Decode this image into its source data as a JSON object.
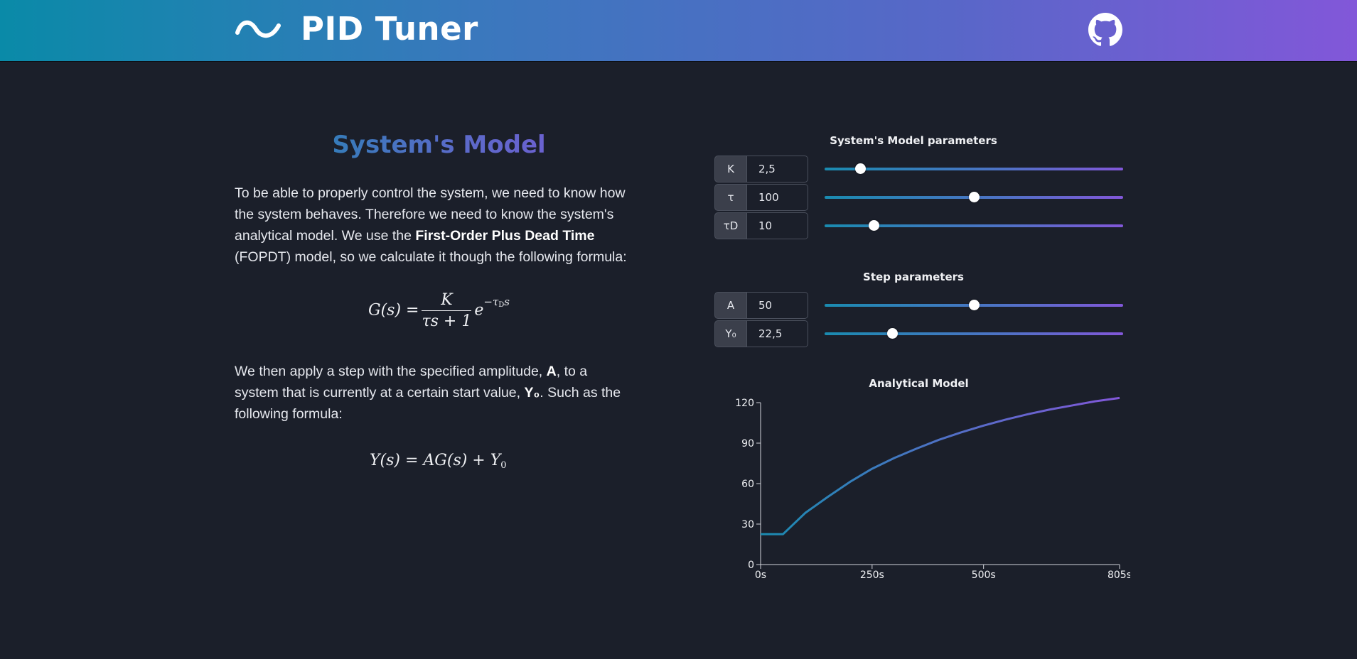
{
  "header": {
    "title": "PID Tuner",
    "logo_icon": "sine-wave-icon",
    "github_icon": "github-icon",
    "gradient": [
      "#0a8aa8",
      "#8257d9"
    ]
  },
  "model_section": {
    "title": "System's Model",
    "para1": {
      "before_bold": "To be able to properly control the system, we need to know how the system behaves. Therefore we need to know the system's analytical model. We use the ",
      "bold": "First-Order Plus Dead Time",
      "after_bold": " (FOPDT) model, so we calculate it though the following formula:"
    },
    "para2": {
      "part1": "We then apply a step with the specified amplitude, ",
      "bold_a": "A",
      "part2": ", to a system that is currently at a certain start value, ",
      "bold_y0": "Y₀",
      "part3": ". Such as the following formula:"
    }
  },
  "formulas": {
    "g_lhs": "G(s) =",
    "g_num": "K",
    "g_den": "τs + 1",
    "g_exp_base": "e",
    "g_exp": "−τ",
    "g_exp_sub": "D",
    "g_exp_s": "s",
    "y": "Y(s) = AG(s) + Y",
    "y_sub": "0"
  },
  "model_params": {
    "label": "System's Model parameters",
    "items": [
      {
        "name": "K",
        "value": "2,5",
        "fraction": 0.12
      },
      {
        "name": "τ",
        "value": "100",
        "fraction": 0.5
      },
      {
        "name": "τD",
        "value": "10",
        "fraction": 0.165
      }
    ]
  },
  "step_params": {
    "label": "Step parameters",
    "items": [
      {
        "name": "A",
        "value": "50",
        "fraction": 0.5
      },
      {
        "name": "Y₀",
        "value": "22,5",
        "fraction": 0.225
      }
    ]
  },
  "chart_data": {
    "type": "line",
    "title": "Analytical Model",
    "xlabel": "",
    "ylabel": "",
    "xlim": [
      0,
      805
    ],
    "ylim": [
      0,
      120
    ],
    "x_ticks": [
      "0s",
      "250s",
      "500s",
      "805s"
    ],
    "x_tick_values": [
      0,
      250,
      500,
      805
    ],
    "y_ticks": [
      "0",
      "30",
      "60",
      "90",
      "120"
    ],
    "y_tick_values": [
      0,
      30,
      60,
      90,
      120
    ],
    "grid": false,
    "series": [
      {
        "x": [
          0,
          50,
          100,
          150,
          200,
          250,
          300,
          350,
          400,
          450,
          500,
          550,
          600,
          650,
          700,
          750,
          805
        ],
        "y": [
          22.5,
          22.5,
          38.2,
          50.0,
          61.2,
          71.0,
          79.0,
          86.0,
          92.5,
          98.0,
          103.0,
          107.5,
          111.5,
          115.0,
          118.0,
          121.0,
          123.5
        ]
      }
    ],
    "line_gradient": [
      "#1a8bb0",
      "#8257d9"
    ]
  }
}
